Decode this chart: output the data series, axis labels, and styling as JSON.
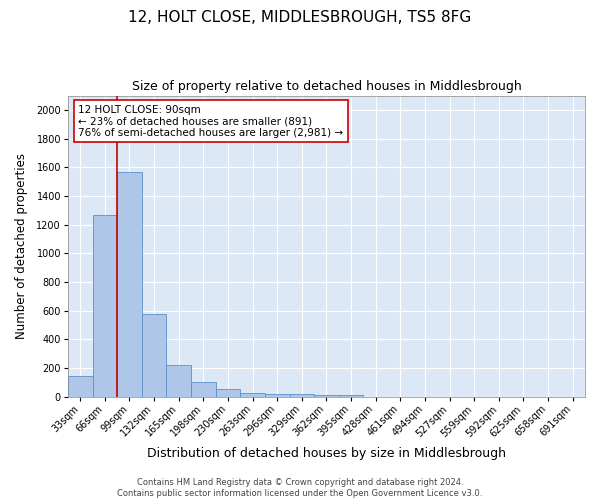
{
  "title": "12, HOLT CLOSE, MIDDLESBROUGH, TS5 8FG",
  "subtitle": "Size of property relative to detached houses in Middlesbrough",
  "xlabel": "Distribution of detached houses by size in Middlesbrough",
  "ylabel": "Number of detached properties",
  "categories": [
    "33sqm",
    "66sqm",
    "99sqm",
    "132sqm",
    "165sqm",
    "198sqm",
    "230sqm",
    "263sqm",
    "296sqm",
    "329sqm",
    "362sqm",
    "395sqm",
    "428sqm",
    "461sqm",
    "494sqm",
    "527sqm",
    "559sqm",
    "592sqm",
    "625sqm",
    "658sqm",
    "691sqm"
  ],
  "values": [
    145,
    1265,
    1565,
    575,
    220,
    100,
    55,
    25,
    20,
    18,
    12,
    10,
    0,
    0,
    0,
    0,
    0,
    0,
    0,
    0,
    0
  ],
  "bar_color": "#aec6e8",
  "bar_edge_color": "#5b8fc9",
  "vline_color": "#cc0000",
  "vline_pos": 1.5,
  "annotation_text": "12 HOLT CLOSE: 90sqm\n← 23% of detached houses are smaller (891)\n76% of semi-detached houses are larger (2,981) →",
  "annotation_box_color": "white",
  "annotation_box_edge_color": "#cc0000",
  "ylim": [
    0,
    2100
  ],
  "yticks": [
    0,
    200,
    400,
    600,
    800,
    1000,
    1200,
    1400,
    1600,
    1800,
    2000
  ],
  "background_color": "#dce8f5",
  "grid_color": "white",
  "footer_line1": "Contains HM Land Registry data © Crown copyright and database right 2024.",
  "footer_line2": "Contains public sector information licensed under the Open Government Licence v3.0.",
  "title_fontsize": 11,
  "subtitle_fontsize": 9,
  "xlabel_fontsize": 9,
  "ylabel_fontsize": 8.5,
  "tick_fontsize": 7,
  "footer_fontsize": 6,
  "annot_fontsize": 7.5
}
